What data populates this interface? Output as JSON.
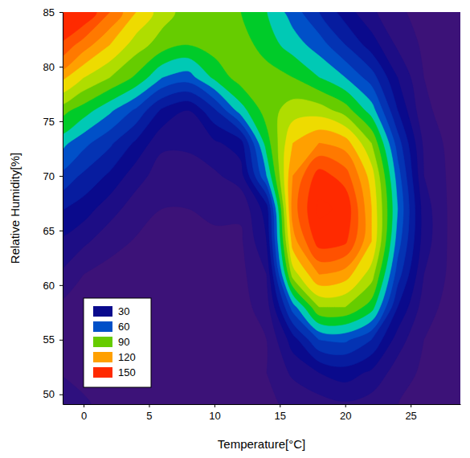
{
  "chart_data": {
    "type": "contour",
    "x_label": "Temperature[°C]",
    "y_label": "Relative Humidity[%]",
    "xlim": [
      -1.6,
      28.8
    ],
    "ylim": [
      49.1,
      85
    ],
    "xticks": [
      0,
      5,
      10,
      15,
      20,
      25
    ],
    "yticks": [
      50,
      55,
      60,
      65,
      70,
      75,
      80,
      85
    ],
    "x": [
      -2,
      0,
      2,
      4,
      6,
      8,
      10,
      12,
      14,
      16,
      18,
      20,
      22,
      24,
      26,
      28,
      30
    ],
    "y": [
      49,
      52,
      55,
      58,
      61,
      64,
      67,
      70,
      73,
      76,
      79,
      82,
      85
    ],
    "z": [
      [
        20,
        12,
        5,
        5,
        5,
        5,
        5,
        5,
        8,
        12,
        15,
        18,
        15,
        10,
        6,
        5,
        5
      ],
      [
        10,
        6,
        5,
        5,
        5,
        5,
        5,
        5,
        10,
        22,
        30,
        35,
        28,
        15,
        8,
        5,
        5
      ],
      [
        5,
        5,
        5,
        5,
        5,
        5,
        5,
        6,
        10,
        35,
        60,
        62,
        50,
        25,
        10,
        6,
        5
      ],
      [
        8,
        5,
        5,
        5,
        5,
        5,
        5,
        6,
        15,
        65,
        100,
        100,
        85,
        40,
        15,
        6,
        5
      ],
      [
        20,
        10,
        6,
        5,
        5,
        5,
        5,
        7,
        20,
        105,
        130,
        125,
        105,
        55,
        20,
        8,
        5
      ],
      [
        28,
        22,
        14,
        9,
        7,
        7,
        8,
        8,
        30,
        125,
        155,
        152,
        120,
        65,
        25,
        8,
        5
      ],
      [
        42,
        35,
        24,
        15,
        10,
        10,
        12,
        12,
        35,
        135,
        162,
        158,
        120,
        70,
        25,
        8,
        5
      ],
      [
        58,
        48,
        38,
        24,
        15,
        15,
        18,
        25,
        70,
        130,
        155,
        145,
        115,
        65,
        20,
        8,
        5
      ],
      [
        75,
        63,
        52,
        38,
        22,
        22,
        28,
        35,
        85,
        120,
        130,
        125,
        100,
        55,
        18,
        7,
        5
      ],
      [
        95,
        85,
        72,
        58,
        38,
        30,
        48,
        75,
        95,
        105,
        105,
        95,
        75,
        40,
        12,
        6,
        5
      ],
      [
        125,
        110,
        100,
        88,
        70,
        65,
        82,
        95,
        95,
        90,
        80,
        70,
        55,
        30,
        10,
        6,
        5
      ],
      [
        150,
        135,
        120,
        105,
        95,
        90,
        95,
        95,
        85,
        75,
        65,
        50,
        35,
        18,
        8,
        5,
        5
      ],
      [
        175,
        160,
        140,
        120,
        105,
        95,
        95,
        90,
        80,
        65,
        50,
        35,
        22,
        12,
        6,
        5,
        5
      ]
    ],
    "colorbar": {
      "levels": [
        30,
        60,
        90,
        120,
        150
      ],
      "colors": [
        "#0a0a8c",
        "#0050c8",
        "#66cc00",
        "#ffa000",
        "#ff2a00"
      ]
    },
    "legend": "lower left"
  }
}
